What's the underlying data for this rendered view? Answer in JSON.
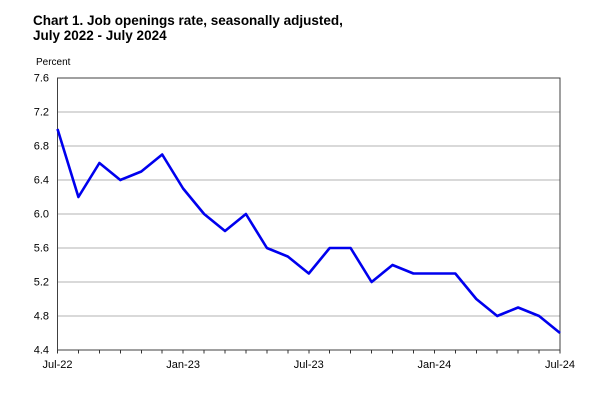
{
  "header": {
    "title_line1": "Chart 1. Job openings rate, seasonally adjusted,",
    "title_line2": "July 2022 - July 2024"
  },
  "chart_data": {
    "type": "line",
    "title": "Chart 1. Job openings rate, seasonally adjusted, July 2022 - July 2024",
    "ylabel": "Percent",
    "xlabel": "",
    "x": [
      "Jul-22",
      "Aug-22",
      "Sep-22",
      "Oct-22",
      "Nov-22",
      "Dec-22",
      "Jan-23",
      "Feb-23",
      "Mar-23",
      "Apr-23",
      "May-23",
      "Jun-23",
      "Jul-23",
      "Aug-23",
      "Sep-23",
      "Oct-23",
      "Nov-23",
      "Dec-23",
      "Jan-24",
      "Feb-24",
      "Mar-24",
      "Apr-24",
      "May-24",
      "Jun-24",
      "Jul-24"
    ],
    "values": [
      7.0,
      6.2,
      6.6,
      6.4,
      6.5,
      6.7,
      6.3,
      6.0,
      5.8,
      6.0,
      5.6,
      5.5,
      5.3,
      5.6,
      5.6,
      5.2,
      5.4,
      5.3,
      5.3,
      5.3,
      5.0,
      4.8,
      4.9,
      4.8,
      4.6
    ],
    "ylim": [
      4.4,
      7.6
    ],
    "ytick_step": 0.4,
    "ytick_labels": [
      "7.6",
      "7.2",
      "6.8",
      "6.4",
      "6.0",
      "5.6",
      "5.2",
      "4.8",
      "4.4"
    ],
    "xtick_labels": [
      "Jul-22",
      "Jan-23",
      "Jul-23",
      "Jan-24",
      "Jul-24"
    ],
    "xtick_indices": [
      0,
      6,
      12,
      18,
      24
    ],
    "grid": true,
    "legend": "none",
    "colors": {
      "line": "#0000ee",
      "grid": "#b3b3b3",
      "frame": "#404040",
      "tick": "#333333",
      "text": "#000000"
    }
  }
}
